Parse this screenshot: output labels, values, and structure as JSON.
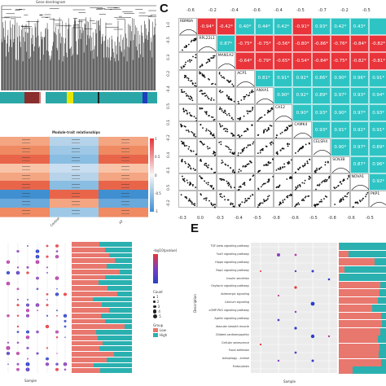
{
  "panels": {
    "c": {
      "letter": "C"
    },
    "e": {
      "letter": "E"
    }
  },
  "dendrogram": {
    "title": "Gene dendrogram"
  },
  "module_colors": [
    "#2aa6a6",
    "#2aa6a6",
    "#8b2e2e",
    "#c47b7b",
    "#ffffff",
    "#2aa6a6",
    "#e6e600",
    "#2aa6a6",
    "#222222",
    "#2aa6a6",
    "#1f3fbf",
    "#2aa6a6"
  ],
  "heatmap": {
    "title": "Module-trait relationships",
    "scale_labels": [
      "1",
      "0.5",
      "0",
      "-0.5",
      "-1"
    ],
    "col_labels": [
      "Control",
      "AF"
    ],
    "rows": [
      {
        "c1": "#f4a582",
        "c2": "#b7d3e9",
        "c3": "#f4a582"
      },
      {
        "c1": "#ef8a62",
        "c2": "#9ec8e6",
        "c3": "#ef8a62"
      },
      {
        "c1": "#e8654a",
        "c2": "#8abde2",
        "c3": "#e8654a"
      },
      {
        "c1": "#f9c3a7",
        "c2": "#c9def0",
        "c3": "#f9c3a7"
      },
      {
        "c1": "#f4a582",
        "c2": "#b7d3e9",
        "c3": "#f4a582"
      },
      {
        "c1": "#e8654a",
        "c2": "#8abde2",
        "c3": "#e8654a"
      },
      {
        "c1": "#3f8fd1",
        "c2": "#e8654a",
        "c3": "#3f8fd1"
      },
      {
        "c1": "#6aa9dc",
        "c2": "#f4a582",
        "c3": "#6aa9dc"
      },
      {
        "c1": "#ef8a62",
        "c2": "#9ec8e6",
        "c3": "#ef8a62"
      }
    ]
  },
  "corr": {
    "genes": [
      "RBM8A",
      "RPL22L1",
      "MAN1A2",
      "ACP1",
      "ANXA1",
      "CA12",
      "CAMK4",
      "CELSR4",
      "SCN3B",
      "NOVA1",
      "PKP1"
    ],
    "top_axis": [
      "-0.6",
      "-0.2",
      "-0.4",
      "-0.6",
      "-0.4",
      "-0.5",
      "-0.7",
      "-0.2",
      "-0.5"
    ],
    "bottom_axis": [
      "-0.3",
      "0.0",
      "-0.3",
      "-0.4",
      "-0.5",
      "-0.8",
      "-0.6",
      "-0.5",
      "-0.8",
      "-0.6",
      "-0.5"
    ],
    "left_axis": [
      "1.0",
      "-0.5",
      "0.3",
      "0.2",
      "-0.4",
      "0.5",
      "0.1",
      "-0.2",
      "0.4",
      "-0.1",
      "0.5",
      "-0.2"
    ],
    "row1": [
      "-0.94*",
      "-0.42*",
      "0.40*",
      "0.44*",
      "0.42*",
      "-0.91*",
      "0.93*",
      "0.42*",
      "0.43*"
    ],
    "row2": [
      "0.87*",
      "-0.75*",
      "-0.75*",
      "-0.56*",
      "-0.80*",
      "-0.86*",
      "-0.76*",
      "-0.84*",
      "-0.82*"
    ],
    "row3": [
      "-0.64*",
      "-0.79*",
      "-0.65*",
      "-0.54*",
      "-0.84*",
      "-0.75*",
      "-0.82*",
      "-0.81*"
    ],
    "row4": [
      "0.81*",
      "0.91*",
      "0.92*",
      "0.86*",
      "0.90*",
      "0.96*",
      "0.91*"
    ],
    "row5": [
      "0.90*",
      "0.92*",
      "0.89*",
      "0.97*",
      "0.93*",
      "0.94*"
    ],
    "row6": [
      "0.90*",
      "0.93*",
      "0.90*",
      "0.97*",
      "0.93*"
    ],
    "row7": [
      "0.93*",
      "0.91*",
      "0.92*",
      "0.91*"
    ],
    "row8": [
      "0.90*",
      "0.97*",
      "0.89*"
    ],
    "row9": [
      "0.87*",
      "0.96*"
    ],
    "row10": [
      "0.92*"
    ]
  },
  "colors": {
    "teal": "#2ec4c4",
    "red": "#e8343a",
    "bar_red": "#e8776e",
    "bar_teal": "#2bb0b0",
    "heat_red": "#e8654a",
    "heat_blue": "#3f8fd1",
    "grid_bg": "#ebebeb"
  },
  "panel_d": {
    "legend_title": "-log10(pvalue)",
    "legend_ticks": [
      "10",
      "8",
      "6",
      "4"
    ],
    "count_title": "Count",
    "count_items": [
      "1",
      "2",
      "3",
      "4",
      "5"
    ],
    "group_title": "Group",
    "group_items": [
      "Low",
      "High"
    ],
    "xlabel": "Sample",
    "bars": [
      0.46,
      0.55,
      0.62,
      0.72,
      0.58,
      0.8,
      0.55,
      0.45,
      0.6,
      0.75,
      0.35,
      0.5,
      0.62,
      0.48,
      0.56,
      0.88,
      0.4,
      0.43,
      0.52,
      0.46,
      0.7,
      0.58,
      0.36,
      0.47
    ]
  },
  "panel_e": {
    "ylabel": "Description",
    "xlabel": "Sample",
    "pathways": [
      "TGF-beta signaling pathway",
      "FoxO signaling pathway",
      "Hippo signaling pathway",
      "Rap1 signaling pathway",
      "Insulin secretion",
      "Oxytocin signaling pathway",
      "Adrenergic signaling",
      "Calcium signaling",
      "cGMP-PKG signaling pathway",
      "Apelin signaling pathway",
      "Vascular smooth muscle",
      "Dilated cardiomyopathy",
      "Cellular senescence",
      "Focal adhesion",
      "Autophagy - animal",
      "Endocytosis"
    ],
    "bars": [
      0.02,
      0.2,
      0.75,
      0.12,
      0.02,
      0.88,
      0.86,
      0.82,
      0.7,
      0.9,
      0.92,
      0.88,
      0.82,
      0.86,
      0.84,
      0.9,
      0.3
    ]
  }
}
